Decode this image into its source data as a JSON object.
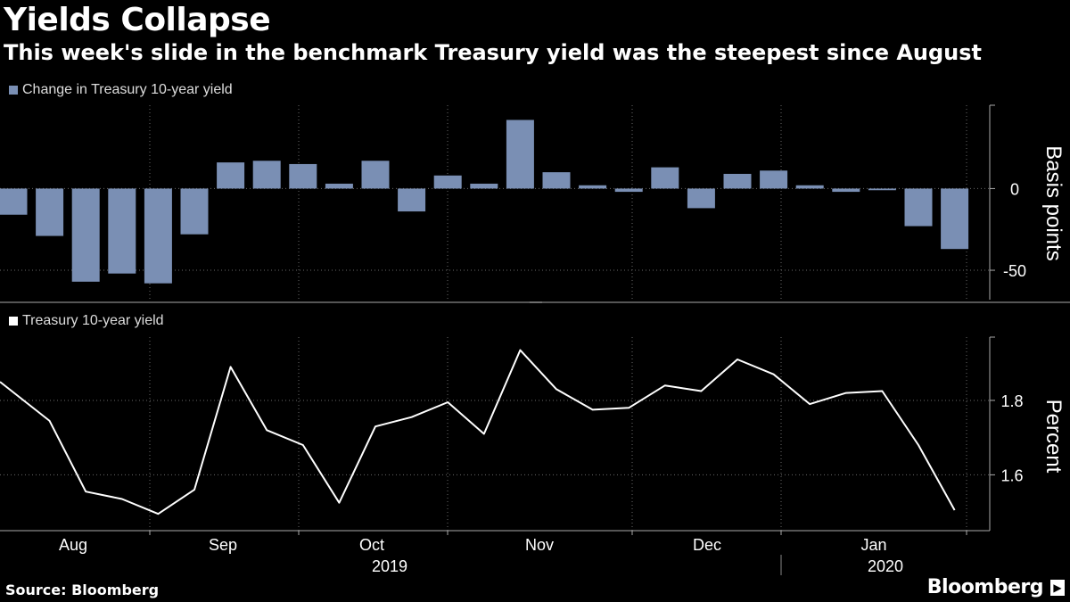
{
  "header": {
    "title": "Yields Collapse",
    "subtitle": "This week's slide in the benchmark Treasury yield was the steepest since August"
  },
  "footer": {
    "source": "Source: Bloomberg",
    "brand": "Bloomberg"
  },
  "colors": {
    "bar": "#7a8fb4",
    "line": "#ffffff",
    "grid": "#6a6a6a",
    "background": "#000000"
  },
  "chart_data": [
    {
      "type": "bar",
      "title": "Change in Treasury 10-year yield",
      "legend": "Change in Treasury 10-year yield",
      "ylabel": "Basis points",
      "ylim": [
        -68,
        51
      ],
      "yticks": [
        0,
        -50
      ],
      "ytick_labels": [
        "0",
        "-50"
      ],
      "values": [
        -16,
        -29,
        -57,
        -52,
        -58,
        -28,
        16,
        17,
        15,
        3,
        17,
        -14,
        8,
        3,
        42,
        10,
        2,
        -2,
        13,
        -12,
        9,
        11,
        2,
        -2,
        -1,
        -23,
        -37
      ]
    },
    {
      "type": "line",
      "title": "Treasury 10-year yield",
      "legend": "Treasury 10-year yield",
      "ylabel": "Percent",
      "ylim": [
        1.45,
        1.97
      ],
      "yticks": [
        1.8,
        1.6
      ],
      "ytick_labels": [
        "1.8",
        "1.6"
      ],
      "values": [
        1.85,
        1.745,
        1.555,
        1.535,
        1.495,
        1.56,
        1.89,
        1.72,
        1.68,
        1.525,
        1.73,
        1.755,
        1.795,
        1.71,
        1.935,
        1.83,
        1.775,
        1.78,
        1.84,
        1.825,
        1.91,
        1.87,
        1.79,
        1.82,
        1.825,
        1.68,
        1.505
      ]
    }
  ],
  "x_axis": {
    "months": [
      "Aug",
      "Sep",
      "Oct",
      "Nov",
      "Dec",
      "Jan"
    ],
    "years": [
      "2019",
      "2020"
    ]
  }
}
